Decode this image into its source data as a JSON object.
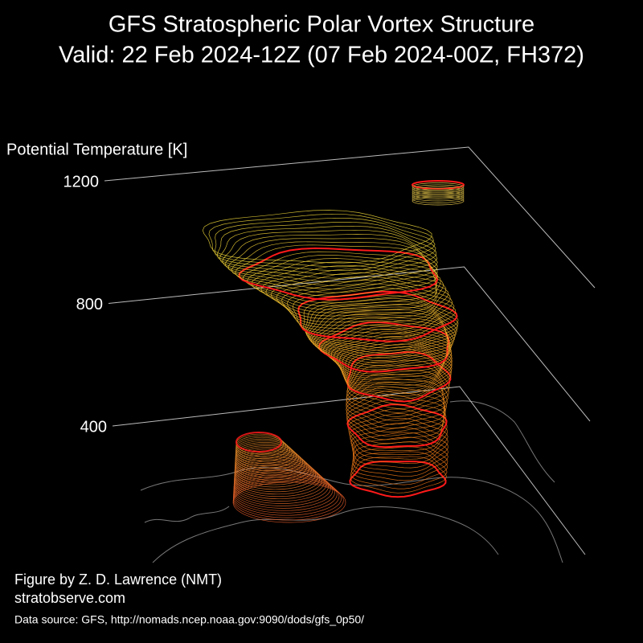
{
  "chart_data": {
    "type": "surface3d",
    "title": "GFS Stratospheric Polar Vortex Structure",
    "subtitle": "Valid: 22 Feb 2024-12Z  (07 Feb 2024-00Z, FH372)",
    "zlabel": "Potential Temperature [K]",
    "zlim": [
      400,
      1200
    ],
    "zticks": [
      400,
      800,
      1200
    ],
    "grid": true,
    "credit": "Figure by Z. D. Lawrence (NMT)",
    "website": "stratobserve.com",
    "source": "Data source: GFS, http://nomads.ncep.noaa.gov:9090/dods/gfs_0p50/"
  }
}
